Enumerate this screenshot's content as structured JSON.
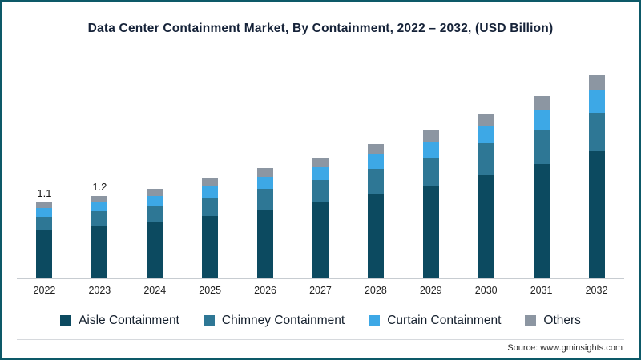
{
  "title": "Data Center Containment Market, By Containment, 2022 – 2032, (USD Billion)",
  "source": "Source: www.gminsights.com",
  "chart_data": {
    "type": "bar",
    "stacked": true,
    "title": "Data Center Containment Market, By Containment, 2022 – 2032, (USD Billion)",
    "xlabel": "",
    "ylabel": "USD Billion",
    "grid": false,
    "legend_position": "bottom",
    "categories": [
      "2022",
      "2023",
      "2024",
      "2025",
      "2026",
      "2027",
      "2028",
      "2029",
      "2030",
      "2031",
      "2032"
    ],
    "series": [
      {
        "name": "Aisle Containment",
        "color": "#0c4a60",
        "values": [
          0.7,
          0.76,
          0.82,
          0.91,
          1.0,
          1.1,
          1.22,
          1.35,
          1.5,
          1.66,
          1.85
        ]
      },
      {
        "name": "Chimney Containment",
        "color": "#2e7795",
        "values": [
          0.2,
          0.22,
          0.24,
          0.27,
          0.3,
          0.33,
          0.37,
          0.41,
          0.46,
          0.5,
          0.56
        ]
      },
      {
        "name": "Curtain Containment",
        "color": "#3da8e6",
        "values": [
          0.12,
          0.13,
          0.14,
          0.16,
          0.18,
          0.19,
          0.21,
          0.23,
          0.26,
          0.29,
          0.32
        ]
      },
      {
        "name": "Others",
        "color": "#8c96a2",
        "values": [
          0.08,
          0.09,
          0.1,
          0.11,
          0.12,
          0.13,
          0.15,
          0.16,
          0.18,
          0.2,
          0.22
        ]
      }
    ],
    "totals": [
      1.1,
      1.2,
      1.3,
      1.45,
      1.6,
      1.75,
      1.95,
      2.15,
      2.4,
      2.65,
      2.95
    ],
    "data_labels": [
      "1.1",
      "1.2",
      "",
      "",
      "",
      "",
      "",
      "",
      "",
      "",
      ""
    ]
  }
}
